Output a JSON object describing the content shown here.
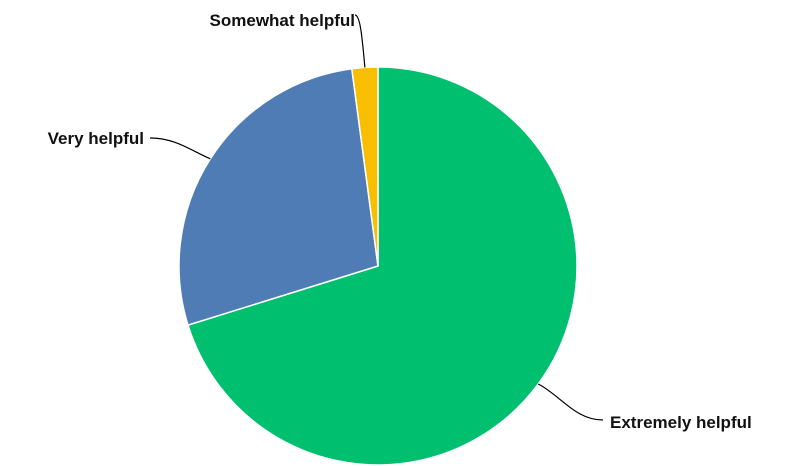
{
  "chart_data": {
    "type": "pie",
    "title": "",
    "categories": [
      "Extremely helpful",
      "Very helpful",
      "Somewhat helpful"
    ],
    "values": [
      70.2,
      27.7,
      2.1
    ],
    "colors": [
      "#00bf6f",
      "#507cb6",
      "#f9be00"
    ],
    "start_angle": "12 o'clock",
    "direction": "clockwise",
    "legend": "none",
    "labels": "outside with leader lines"
  }
}
